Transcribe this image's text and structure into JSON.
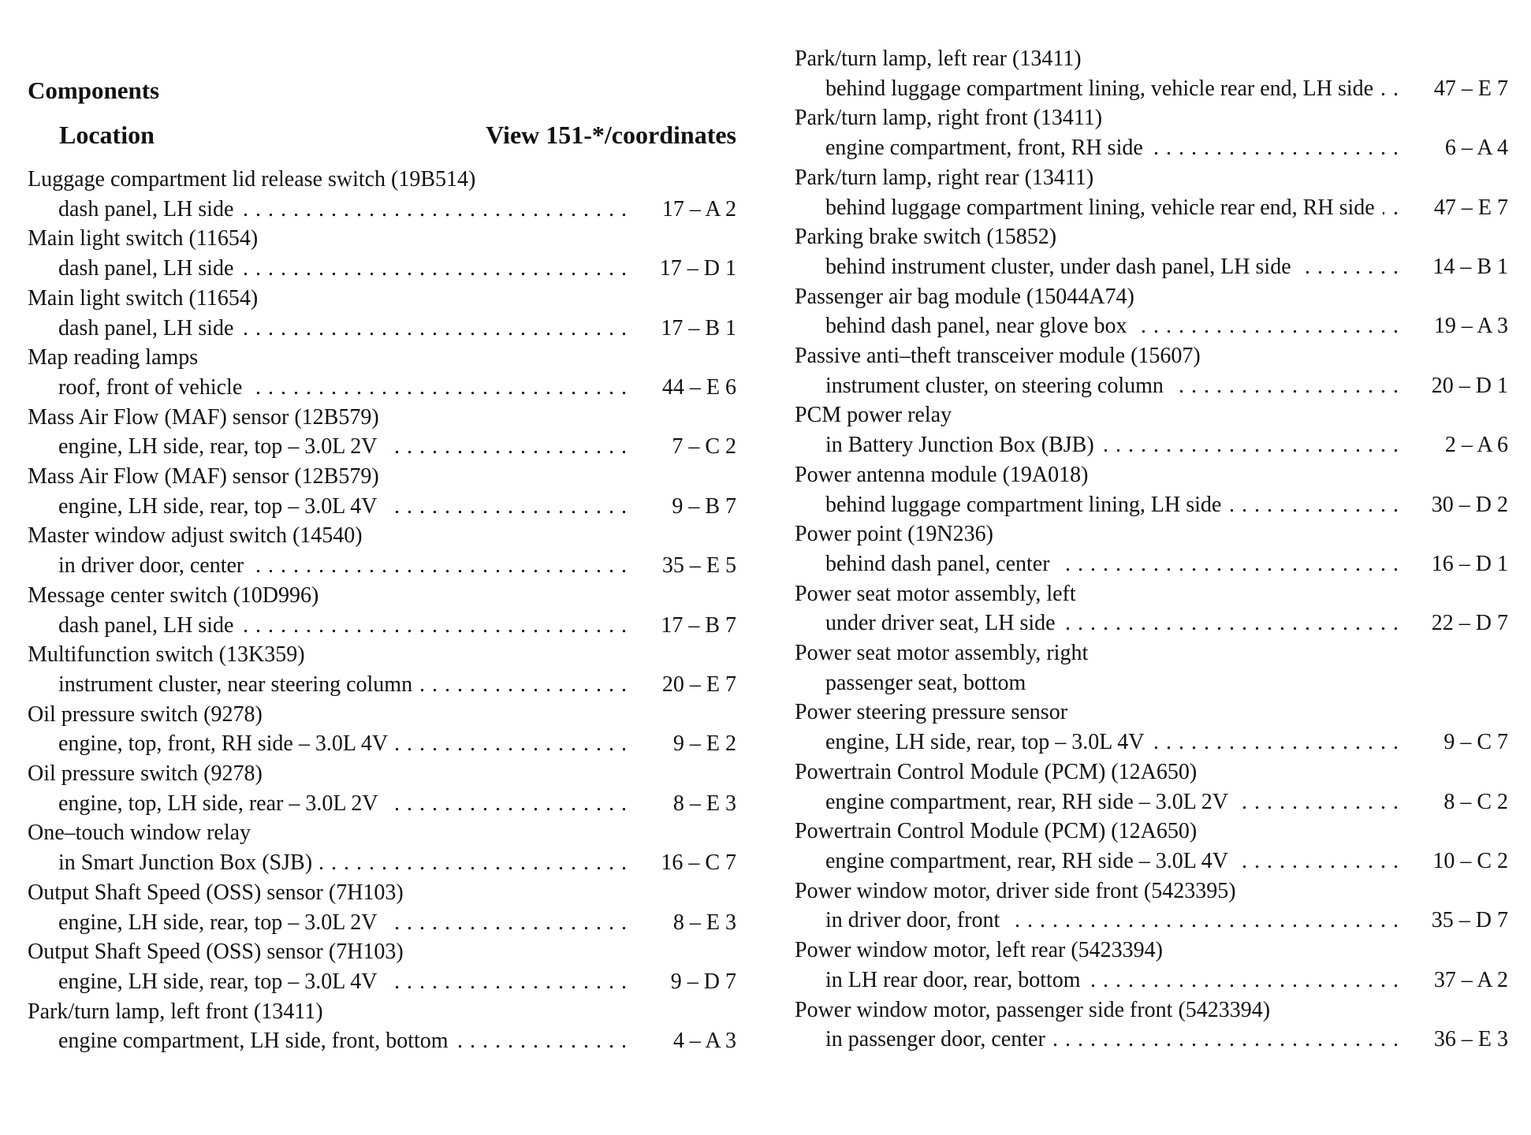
{
  "header": {
    "title": "Components",
    "location_label": "Location",
    "view_label": "View 151-*/coordinates"
  },
  "left_entries": [
    {
      "name": "Luggage compartment lid release switch (19B514)",
      "location": "dash panel, LH side",
      "coord": "17 – A 2"
    },
    {
      "name": "Main light switch (11654)",
      "location": "dash panel, LH side",
      "coord": "17 – D 1"
    },
    {
      "name": "Main light switch (11654)",
      "location": "dash panel, LH side",
      "coord": "17 – B 1"
    },
    {
      "name": "Map reading lamps",
      "location": "roof, front of vehicle",
      "coord": "44 – E 6"
    },
    {
      "name": "Mass Air Flow (MAF) sensor (12B579)",
      "location": "engine, LH side, rear, top – 3.0L 2V",
      "coord": "7 – C 2"
    },
    {
      "name": "Mass Air Flow (MAF) sensor (12B579)",
      "location": "engine, LH side, rear, top – 3.0L 4V",
      "coord": "9 – B 7"
    },
    {
      "name": "Master window adjust switch (14540)",
      "location": "in driver door, center",
      "coord": "35 – E 5"
    },
    {
      "name": "Message center switch (10D996)",
      "location": "dash panel, LH side",
      "coord": "17 – B 7"
    },
    {
      "name": "Multifunction switch (13K359)",
      "location": "instrument cluster, near steering column",
      "coord": "20 – E 7"
    },
    {
      "name": "Oil pressure switch (9278)",
      "location": "engine, top, front, RH side – 3.0L 4V",
      "coord": "9 – E 2"
    },
    {
      "name": "Oil pressure switch (9278)",
      "location": "engine, top, LH side, rear – 3.0L 2V",
      "coord": "8 – E 3"
    },
    {
      "name": "One–touch window relay",
      "location": "in Smart Junction Box (SJB)",
      "coord": "16 – C 7"
    },
    {
      "name": "Output Shaft Speed (OSS) sensor (7H103)",
      "location": "engine, LH side, rear, top – 3.0L 2V",
      "coord": "8 – E 3"
    },
    {
      "name": "Output Shaft Speed (OSS) sensor (7H103)",
      "location": "engine, LH side, rear, top – 3.0L 4V",
      "coord": "9 – D 7"
    },
    {
      "name": "Park/turn lamp, left front (13411)",
      "location": "engine compartment, LH side, front, bottom",
      "coord": "4 – A 3"
    }
  ],
  "right_entries": [
    {
      "name": "Park/turn lamp, left rear (13411)",
      "location": "behind luggage compartment lining, vehicle rear end, LH side",
      "coord": "47 – E 7"
    },
    {
      "name": "Park/turn lamp, right front (13411)",
      "location": "engine compartment, front, RH side",
      "coord": "6 – A 4"
    },
    {
      "name": "Park/turn lamp, right rear (13411)",
      "location": "behind luggage compartment lining, vehicle rear end, RH side",
      "coord": "47 – E 7"
    },
    {
      "name": "Parking brake switch (15852)",
      "location": "behind instrument cluster, under dash panel, LH side",
      "coord": "14 – B 1"
    },
    {
      "name": "Passenger air bag module (15044A74)",
      "location": "behind dash panel, near glove box",
      "coord": "19 – A 3"
    },
    {
      "name": "Passive anti–theft transceiver module (15607)",
      "location": "instrument cluster, on steering column",
      "coord": "20 – D 1"
    },
    {
      "name": "PCM power relay",
      "location": "in Battery Junction Box (BJB)",
      "coord": "2 – A 6"
    },
    {
      "name": "Power antenna module (19A018)",
      "location": "behind luggage compartment lining, LH side",
      "coord": "30 – D 2"
    },
    {
      "name": "Power point (19N236)",
      "location": "behind dash panel, center",
      "coord": "16 – D 1"
    },
    {
      "name": "Power seat motor assembly, left",
      "location": "under driver seat, LH side",
      "coord": "22 – D 7"
    },
    {
      "name": "Power seat motor assembly, right",
      "location": "passenger seat, bottom",
      "coord": null
    },
    {
      "name": "Power steering pressure sensor",
      "location": "engine, LH side, rear, top – 3.0L 4V",
      "coord": "9 – C 7"
    },
    {
      "name": "Powertrain Control Module (PCM) (12A650)",
      "location": "engine compartment, rear, RH side – 3.0L 2V",
      "coord": "8 – C 2"
    },
    {
      "name": "Powertrain Control Module (PCM) (12A650)",
      "location": "engine compartment, rear, RH side – 3.0L 4V",
      "coord": "10 – C 2"
    },
    {
      "name": "Power window motor, driver side front (5423395)",
      "location": "in driver door, front",
      "coord": "35 – D 7"
    },
    {
      "name": "Power window motor, left rear (5423394)",
      "location": "in LH rear door, rear, bottom",
      "coord": "37 – A 2"
    },
    {
      "name": "Power window motor, passenger side front (5423394)",
      "location": "in passenger door, center",
      "coord": "36 – E 3"
    }
  ]
}
